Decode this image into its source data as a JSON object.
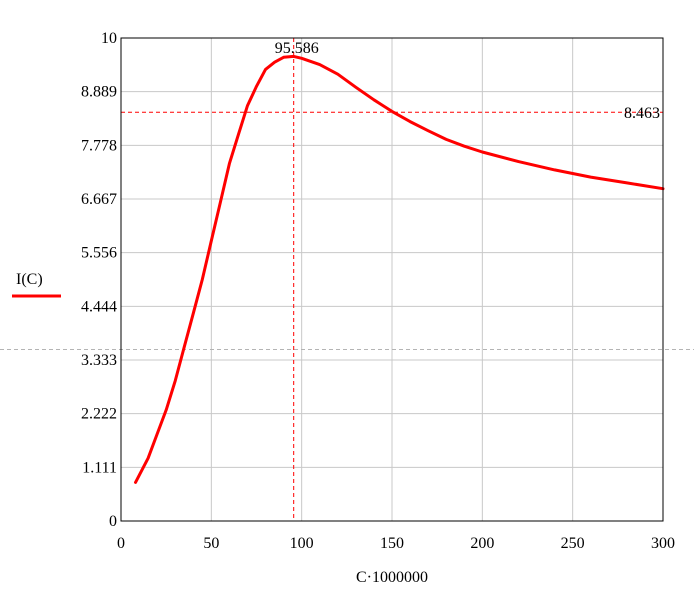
{
  "chart_data": {
    "type": "line",
    "xlabel": "C·1000000",
    "ylabel": "",
    "xlim": [
      0,
      300
    ],
    "ylim": [
      0,
      10
    ],
    "x_ticks": [
      "0",
      "50",
      "100",
      "150",
      "200",
      "250",
      "300"
    ],
    "y_ticks": [
      "0",
      "1.111",
      "2.222",
      "3.333",
      "4.444",
      "5.556",
      "6.667",
      "7.778",
      "8.889",
      "10"
    ],
    "grid": true,
    "legend": {
      "position": "left",
      "entries": [
        "I(C)"
      ]
    },
    "colors": {
      "series": "#ff0000",
      "grid": "#c8c8c8",
      "axes": "#000000",
      "crosshair": "#ff0000"
    },
    "series": [
      {
        "name": "I(C)",
        "points": [
          [
            8,
            0.8
          ],
          [
            15,
            1.3
          ],
          [
            20,
            1.8
          ],
          [
            25,
            2.3
          ],
          [
            30,
            2.9
          ],
          [
            35,
            3.6
          ],
          [
            40,
            4.3
          ],
          [
            45,
            5.0
          ],
          [
            50,
            5.8
          ],
          [
            55,
            6.6
          ],
          [
            60,
            7.4
          ],
          [
            65,
            8.0
          ],
          [
            70,
            8.6
          ],
          [
            75,
            9.0
          ],
          [
            80,
            9.35
          ],
          [
            85,
            9.5
          ],
          [
            90,
            9.6
          ],
          [
            95.586,
            9.62
          ],
          [
            100,
            9.58
          ],
          [
            110,
            9.45
          ],
          [
            120,
            9.25
          ],
          [
            130,
            8.98
          ],
          [
            140,
            8.72
          ],
          [
            150,
            8.48
          ],
          [
            160,
            8.27
          ],
          [
            170,
            8.08
          ],
          [
            180,
            7.9
          ],
          [
            190,
            7.76
          ],
          [
            200,
            7.64
          ],
          [
            220,
            7.44
          ],
          [
            240,
            7.27
          ],
          [
            260,
            7.12
          ],
          [
            280,
            7.0
          ],
          [
            300,
            6.88
          ]
        ]
      }
    ],
    "markers": {
      "vertical": {
        "x": 95.586,
        "label": "95.586"
      },
      "horizontal": {
        "y": 8.463,
        "label": "8.463"
      }
    },
    "gray_guide_y": 3.55
  }
}
